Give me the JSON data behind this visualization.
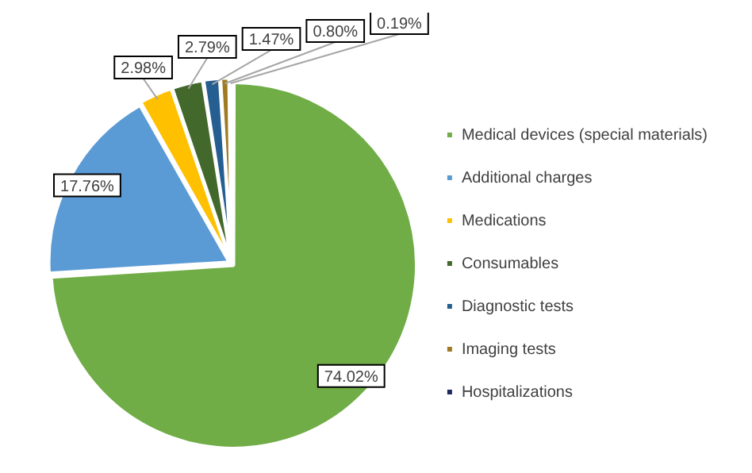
{
  "chart_data": {
    "type": "pie",
    "categories": [
      "Medical devices (special materials)",
      "Additional charges",
      "Medications",
      "Consumables",
      "Diagnostic tests",
      "Imaging tests",
      "Hospitalizations"
    ],
    "values": [
      74.02,
      17.76,
      2.98,
      2.79,
      1.47,
      0.8,
      0.19
    ],
    "colors": [
      "#70ad47",
      "#5b9bd5",
      "#ffc000",
      "#43682b",
      "#255e91",
      "#9e7a22",
      "#1f2a5c"
    ],
    "value_labels": [
      "74.02%",
      "17.76%",
      "2.98%",
      "2.79%",
      "1.47%",
      "0.80%",
      "0.19%"
    ],
    "legend": "right"
  }
}
